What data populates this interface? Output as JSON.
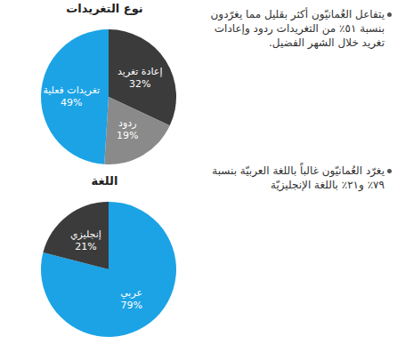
{
  "chart_data": [
    {
      "type": "pie",
      "title": "نوع التغريدات",
      "categories": [
        "إعادة تغريد",
        "ردود",
        "تغريدات فعلية"
      ],
      "values": [
        32,
        19,
        49
      ],
      "value_labels": [
        "32%",
        "19%",
        "49%"
      ],
      "colors": [
        "#3b3b3b",
        "#8a8a8a",
        "#1ba3e6"
      ],
      "data_labels": true,
      "annotations": [
        "يتفاعل العُمانيّون أكثر بقليل مما يغرّدون بنسبة ٥١٪ من التغريدات ردود وإعادات تغريد خلال الشهر الفضيل."
      ]
    },
    {
      "type": "pie",
      "title": "اللغة",
      "categories": [
        "عربي",
        "إنجليزي"
      ],
      "values": [
        79,
        21
      ],
      "value_labels": [
        "79%",
        "21%"
      ],
      "colors": [
        "#1ba3e6",
        "#3b3b3b"
      ],
      "data_labels": true,
      "annotations": [
        "يغرّد العُمانيّون غالباً باللغة العربيّة بنسبة ٧٩٪ و٢١٪ باللغة الإنجليزيّة"
      ]
    }
  ]
}
